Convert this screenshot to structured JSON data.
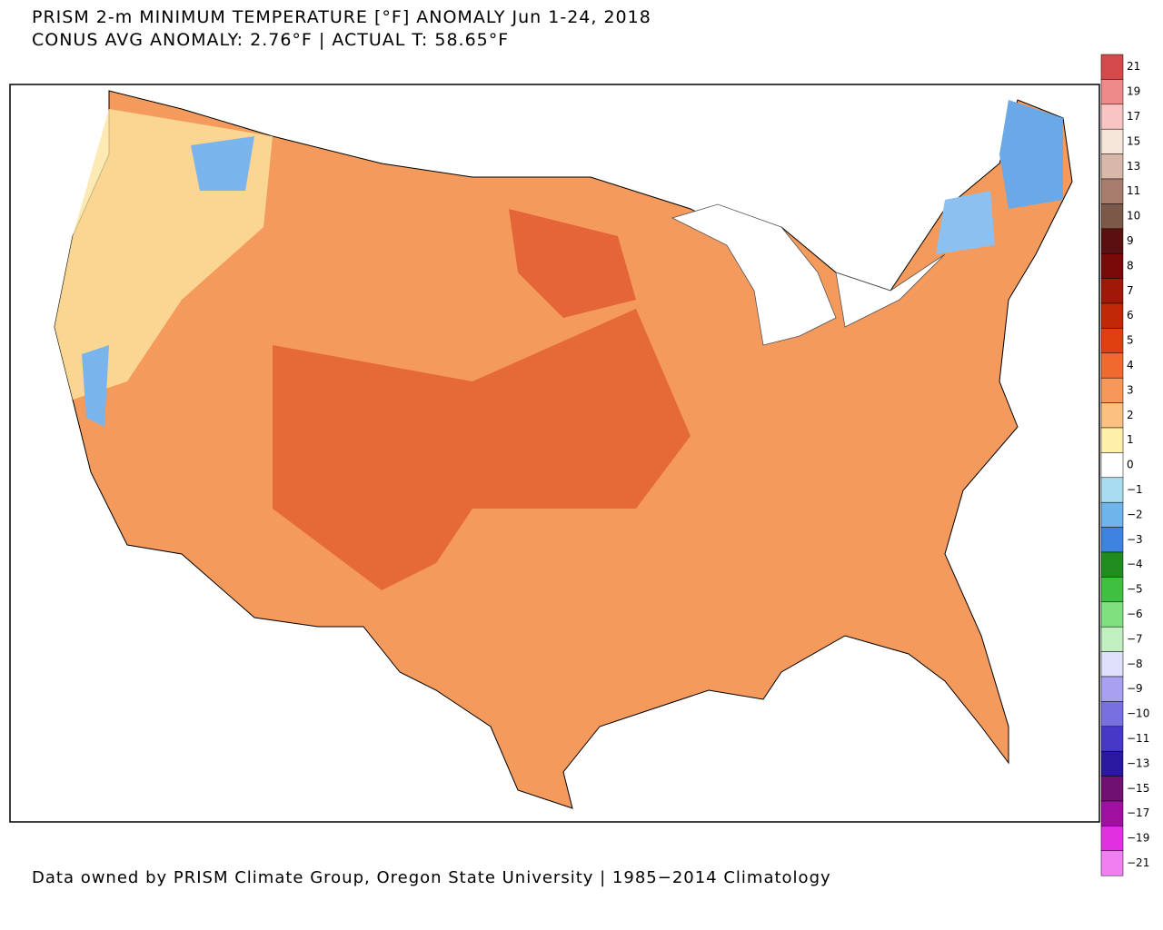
{
  "header": {
    "title": "PRISM 2-m MINIMUM TEMPERATURE [°F] ANOMALY Jun 1-24, 2018",
    "subtitle": "CONUS AVG ANOMALY: 2.76°F | ACTUAL T: 58.65°F"
  },
  "colorbar": {
    "labels": [
      "21",
      "19",
      "17",
      "15",
      "13",
      "11",
      "10",
      "9",
      "8",
      "7",
      "6",
      "5",
      "4",
      "3",
      "2",
      "1",
      "0",
      "−1",
      "−2",
      "−3",
      "−4",
      "−5",
      "−6",
      "−7",
      "−8",
      "−9",
      "−10",
      "−11",
      "−13",
      "−15",
      "−17",
      "−19",
      "−21"
    ],
    "colors": [
      "#d44a4a",
      "#ef8a8a",
      "#f8c4c4",
      "#f6e6da",
      "#d8b8a8",
      "#a87c6c",
      "#7c5848",
      "#5a1010",
      "#7a0a0a",
      "#a01808",
      "#c02808",
      "#e04010",
      "#f06a30",
      "#f89858",
      "#fcc080",
      "#fef0a8",
      "#ffffff",
      "#a8dcf0",
      "#70b4ec",
      "#3c84e0",
      "#208c20",
      "#40c040",
      "#80e080",
      "#c0f0c0",
      "#e0e0fc",
      "#a8a0f0",
      "#7870e0",
      "#4838c8",
      "#2a18a0",
      "#701070",
      "#a010a0",
      "#e030e0",
      "#f080f0"
    ]
  },
  "footer": "Data owned by PRISM Climate Group, Oregon State University | 1985−2014 Climatology"
}
